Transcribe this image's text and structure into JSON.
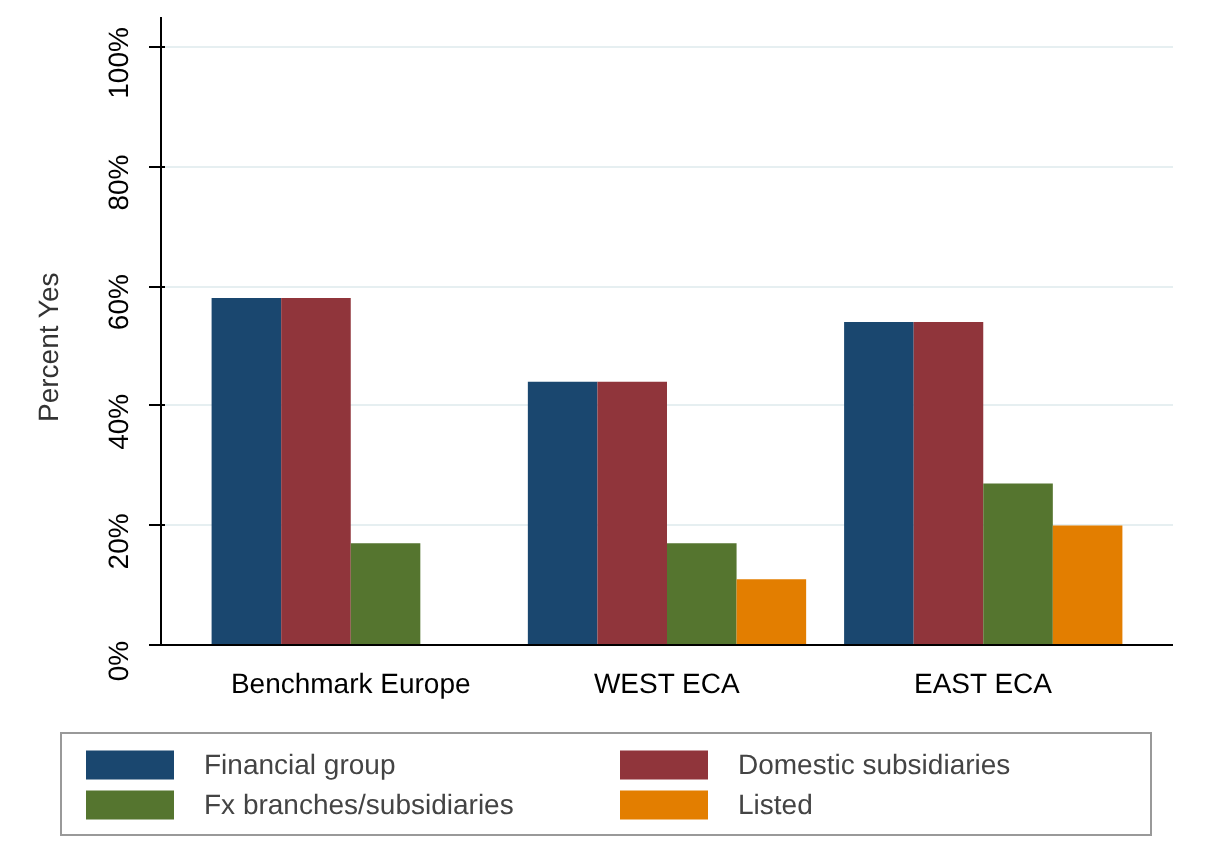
{
  "chart_data": {
    "type": "bar",
    "ylabel": "Percent Yes",
    "categories": [
      "Benchmark Europe",
      "WEST ECA",
      "EAST ECA"
    ],
    "series": [
      {
        "name": "Financial group",
        "color": "#1a476f",
        "values": [
          58,
          44,
          54
        ]
      },
      {
        "name": "Domestic subsidiaries",
        "color": "#90353b",
        "values": [
          58,
          44,
          54
        ]
      },
      {
        "name": "Fx branches/subsidiaries",
        "color": "#55752f",
        "values": [
          17,
          17,
          27
        ]
      },
      {
        "name": "Listed",
        "color": "#e37e00",
        "values": [
          null,
          11,
          20
        ]
      }
    ],
    "ylim": [
      0,
      105
    ],
    "yticks": [
      {
        "value": 0,
        "label": "0%"
      },
      {
        "value": 20,
        "label": "20%"
      },
      {
        "value": 40,
        "label": "40%"
      },
      {
        "value": 60,
        "label": "60%"
      },
      {
        "value": 80,
        "label": "80%"
      },
      {
        "value": 100,
        "label": "100%"
      }
    ],
    "grid": "y",
    "legend": "bottom"
  }
}
